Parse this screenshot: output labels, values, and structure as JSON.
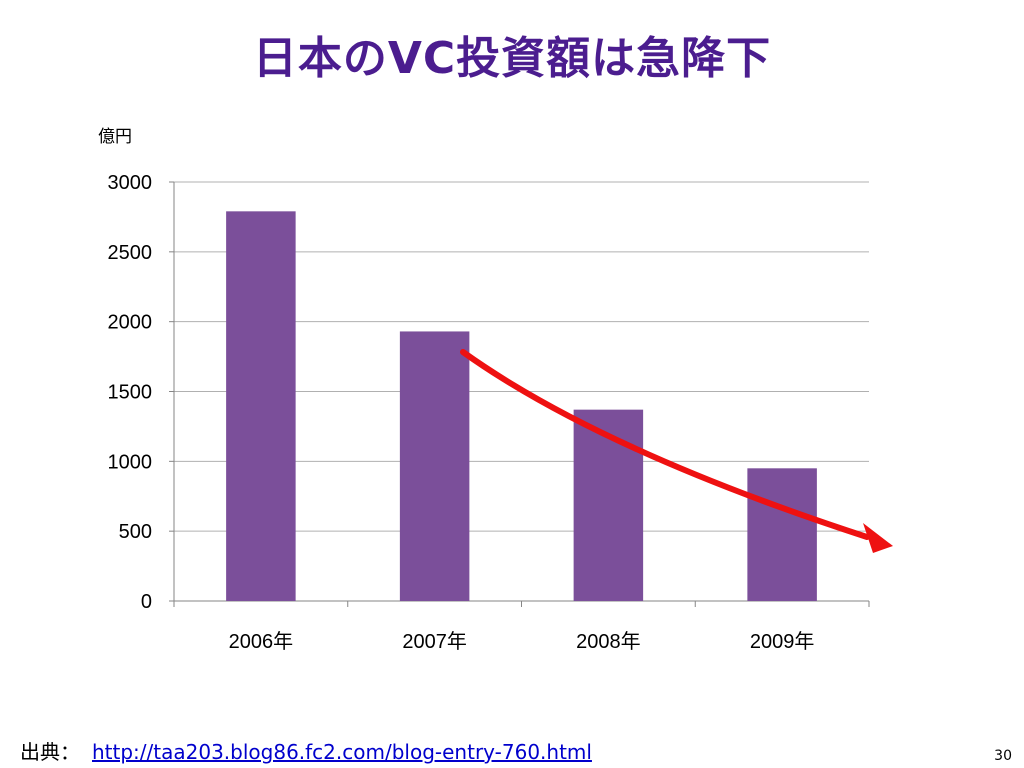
{
  "slide": {
    "title": "日本のVC投資額は急降下",
    "unit_label": "億円",
    "source_prefix": "出典：",
    "source_url": "http://taa203.blog86.fc2.com/blog-entry-760.html",
    "page_number": "30"
  },
  "colors": {
    "title": "#4B1D8F",
    "bar": "#7B4F9A",
    "arrow": "#EE1111",
    "grid": "#B0B0B0",
    "link": "#0000CC"
  },
  "chart_data": {
    "type": "bar",
    "categories": [
      "2006年",
      "2007年",
      "2008年",
      "2009年"
    ],
    "values": [
      2790,
      1930,
      1370,
      950
    ],
    "ylabel": "億円",
    "ylim": [
      0,
      3000
    ],
    "yticks": [
      0,
      500,
      1000,
      1500,
      2000,
      2500,
      3000
    ],
    "grid": true,
    "legend": "none",
    "annotation": "red downward-trend arrow from 2007 toward after 2009"
  }
}
